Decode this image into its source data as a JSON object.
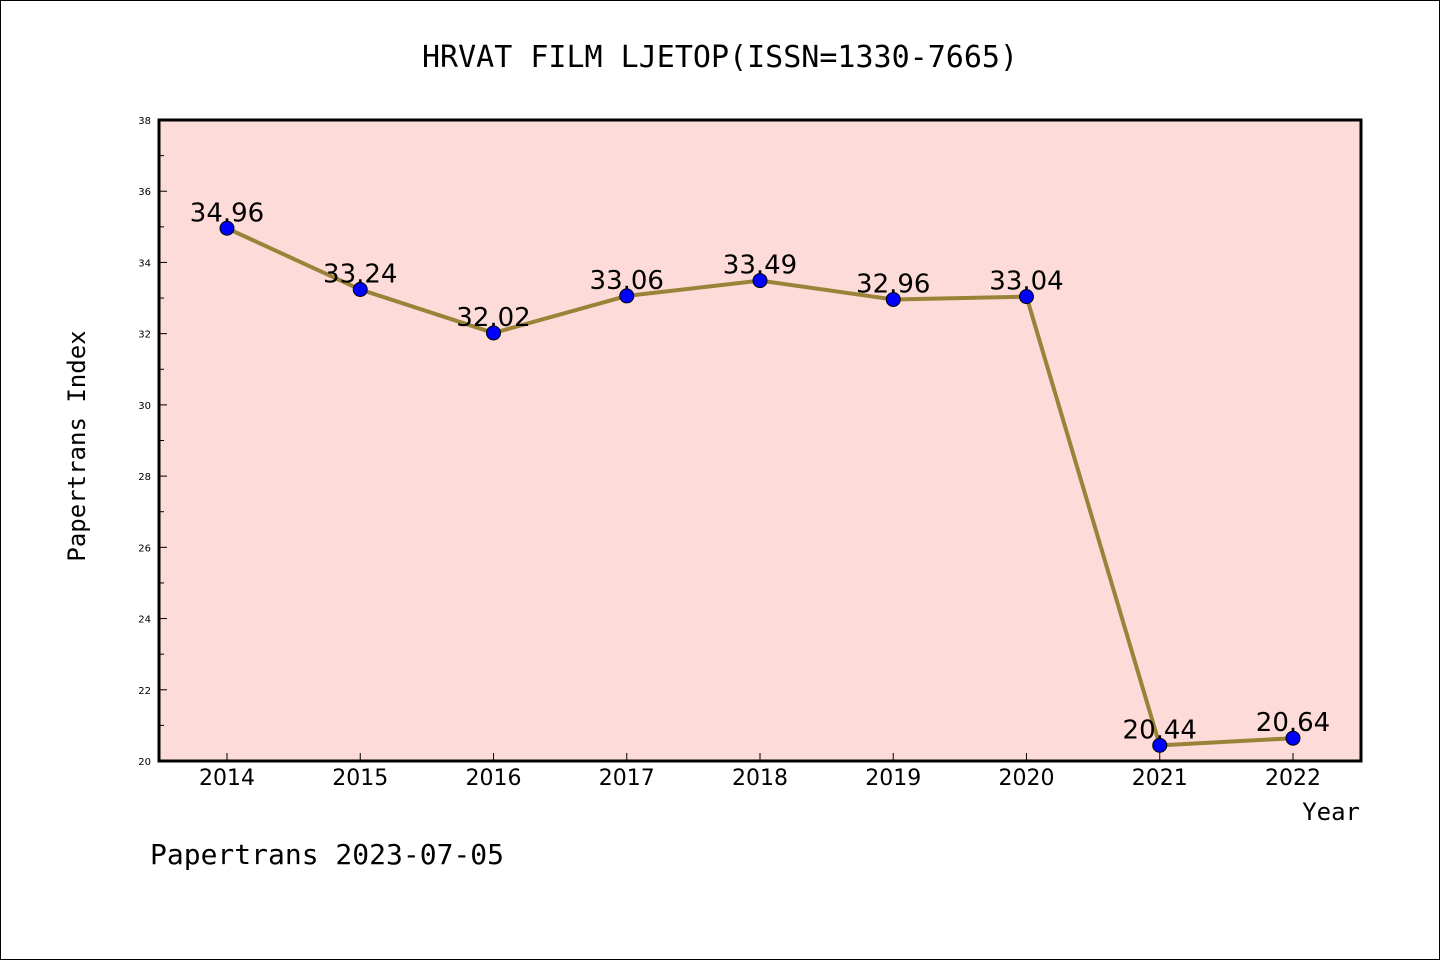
{
  "chart_data": {
    "type": "line",
    "title": "HRVAT FILM LJETOP(ISSN=1330-7665)",
    "xlabel": "Year",
    "ylabel": "Papertrans Index",
    "categories": [
      "2014",
      "2015",
      "2016",
      "2017",
      "2018",
      "2019",
      "2020",
      "2021",
      "2022"
    ],
    "values": [
      34.96,
      33.24,
      32.02,
      33.06,
      33.49,
      32.96,
      33.04,
      20.44,
      20.64
    ],
    "data_labels": [
      "34.96",
      "33.24",
      "32.02",
      "33.06",
      "33.49",
      "32.96",
      "33.04",
      "20.44",
      "20.64"
    ],
    "ylim": [
      20,
      38
    ],
    "yticks": [
      "20",
      "22",
      "24",
      "26",
      "28",
      "30",
      "32",
      "34",
      "36",
      "38"
    ],
    "grid": false,
    "colors": {
      "plot_background": "#fddbd8",
      "line": "#9a8239",
      "marker": "#0000ff"
    }
  },
  "footer": "Papertrans 2023-07-05"
}
